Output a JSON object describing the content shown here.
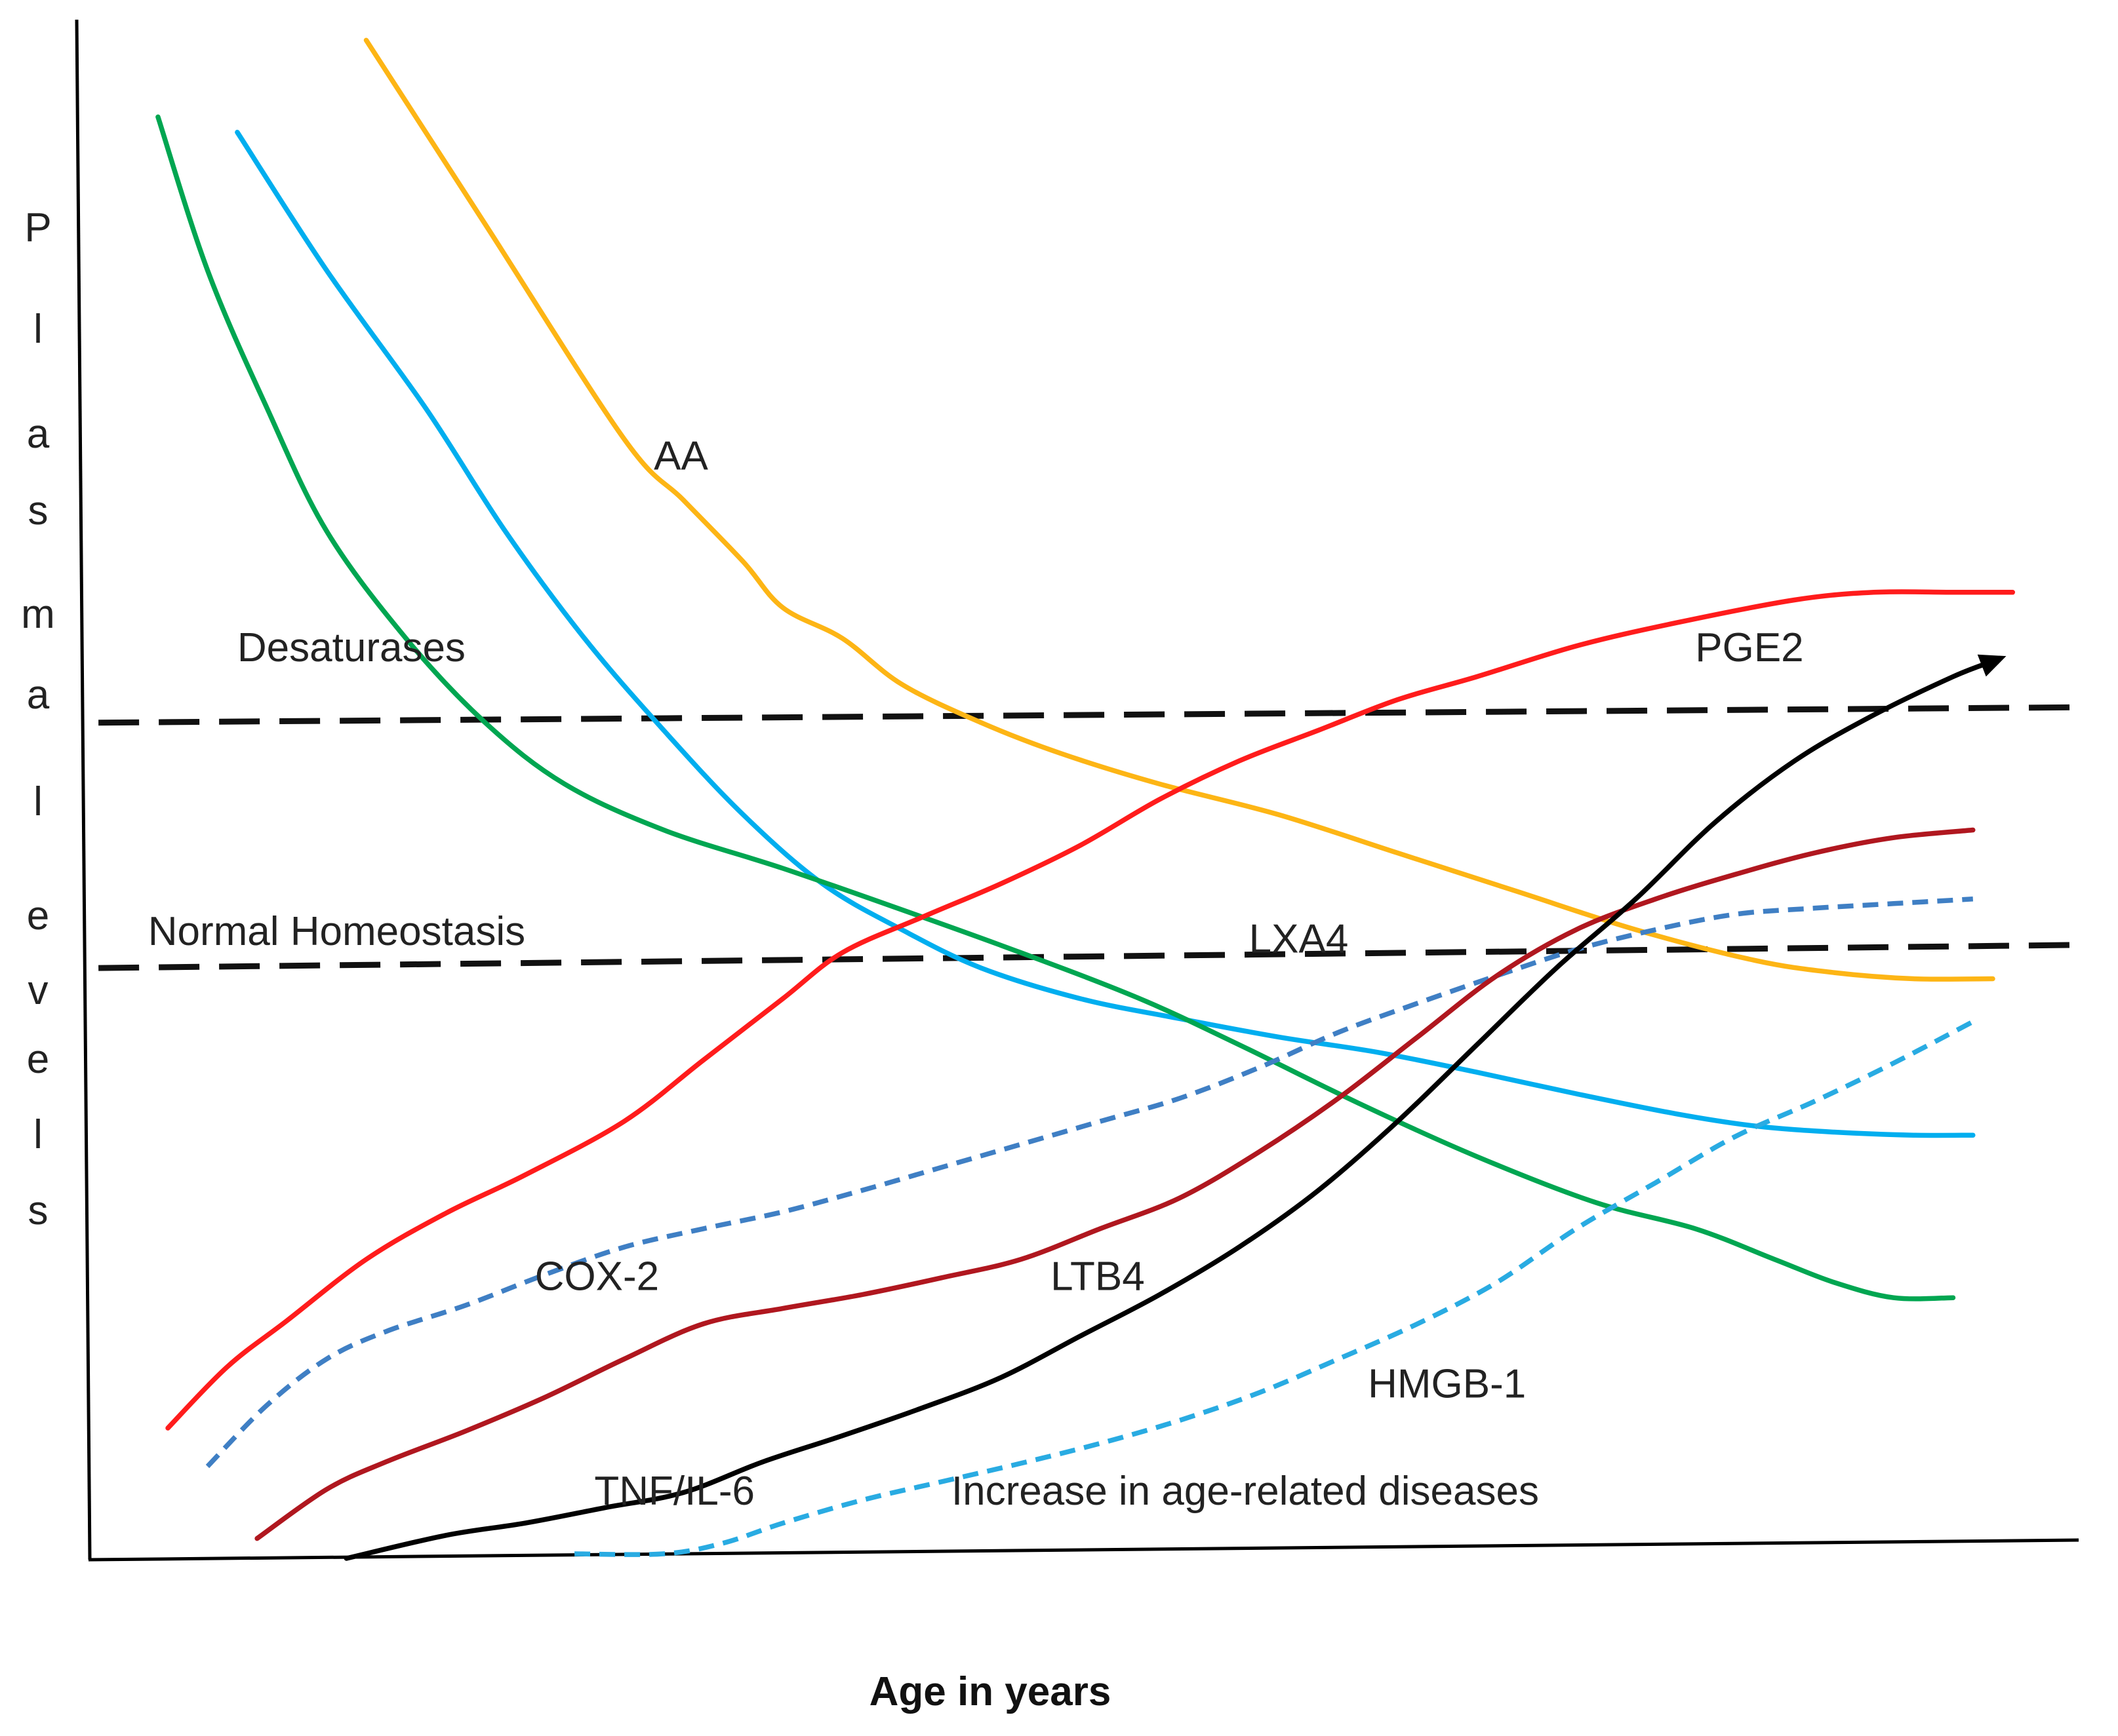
{
  "chart_data": {
    "type": "line",
    "title": "",
    "xlabel": "Age in years",
    "ylabel": "Plasma levels",
    "ylabel_letters": [
      "P",
      "l",
      "a",
      "s",
      "m",
      "a",
      "l",
      "e",
      "v",
      "e",
      "l",
      "s"
    ],
    "xlim": [
      0,
      100
    ],
    "ylim": [
      0,
      100
    ],
    "grid": false,
    "legend": "none",
    "colors": {
      "AA": "#FDB515",
      "Desaturases": "#00AEEF",
      "LXA4": "#00A651",
      "PGE2": "#FF1C1C",
      "COX-2": "#3F7FC4",
      "LTB4": "#B0171F",
      "TNF/IL-6": "#000000",
      "HMGB-1": "#29ABE2",
      "reference": "#111111"
    },
    "series": [
      {
        "name": "AA",
        "style": "solid",
        "x": [
          14,
          20,
          27,
          30,
          33,
          35,
          38,
          41,
          45,
          49,
          54,
          60,
          66,
          72,
          78,
          84,
          88,
          92,
          96
        ],
        "y": [
          99,
          87,
          73,
          69,
          65,
          62,
          60,
          57,
          54.5,
          52.5,
          50.5,
          48.5,
          46,
          43.5,
          41,
          39,
          38.2,
          37.8,
          37.8
        ]
      },
      {
        "name": "Desaturases",
        "style": "solid",
        "x": [
          7.5,
          12,
          17,
          21,
          25,
          29,
          33,
          37,
          41,
          45,
          50,
          55,
          60,
          65,
          70,
          75,
          80,
          84,
          88,
          92,
          95
        ],
        "y": [
          93,
          84,
          75,
          67,
          60,
          54,
          48.5,
          44,
          41,
          38.5,
          36.5,
          35.2,
          34,
          33,
          31.7,
          30.3,
          29,
          28.2,
          27.8,
          27.6,
          27.6
        ]
      },
      {
        "name": "LXA4",
        "style": "solid",
        "x": [
          3.5,
          6,
          9,
          12,
          16,
          20,
          24,
          29,
          35,
          41,
          47,
          53,
          58,
          64,
          70,
          76,
          81,
          85,
          88,
          91,
          94
        ],
        "y": [
          94,
          84,
          75,
          67,
          60,
          54.5,
          50.5,
          47.5,
          45,
          42.3,
          39.5,
          36.5,
          33.5,
          29.7,
          26.2,
          23.2,
          21.5,
          19.5,
          18,
          17,
          17
        ]
      },
      {
        "name": "PGE2",
        "style": "solid",
        "x": [
          4,
          7,
          10,
          14,
          18,
          22,
          27,
          31,
          35,
          38,
          42,
          46,
          50,
          54,
          58,
          62,
          66,
          70,
          75,
          80,
          86,
          90,
          94,
          97
        ],
        "y": [
          8.5,
          12.5,
          15.5,
          19.5,
          22.5,
          25,
          28.5,
          32.5,
          36.5,
          39.5,
          41.8,
          44,
          46.5,
          49.5,
          52,
          54,
          56,
          57.5,
          59.5,
          61,
          62.5,
          63,
          63,
          63
        ]
      },
      {
        "name": "COX-2",
        "style": "dashed",
        "x": [
          6,
          9,
          12,
          15,
          19,
          23,
          27,
          31,
          35,
          39,
          43,
          47,
          51,
          55,
          59,
          63,
          67,
          71,
          75,
          79,
          83,
          87,
          91,
          95
        ],
        "y": [
          6,
          10,
          13,
          14.8,
          16.5,
          18.5,
          20.3,
          21.5,
          22.6,
          24,
          25.5,
          27,
          28.5,
          30,
          32,
          34.3,
          36.2,
          38,
          39.7,
          41,
          42,
          42.4,
          42.7,
          43
        ]
      },
      {
        "name": "LTB4",
        "style": "solid",
        "x": [
          8.5,
          12,
          15,
          19,
          23,
          27,
          31,
          35,
          39,
          43,
          47,
          51,
          55,
          59,
          63,
          67,
          71,
          75,
          79,
          83,
          87,
          91,
          95
        ],
        "y": [
          1.3,
          4.5,
          6.3,
          8.3,
          10.5,
          13,
          15.3,
          16.3,
          17.2,
          18.3,
          19.5,
          21.5,
          23.5,
          26.5,
          30,
          34,
          38,
          41,
          43,
          44.6,
          46,
          47,
          47.5
        ]
      },
      {
        "name": "TNF/IL-6",
        "style": "solid",
        "x": [
          13,
          18,
          22,
          26,
          30,
          34,
          38,
          42,
          46,
          50,
          54,
          58,
          62,
          66,
          70,
          74,
          78,
          82,
          86,
          90,
          94,
          96
        ],
        "y": [
          0,
          1.5,
          2.3,
          3.3,
          4.3,
          6.3,
          8,
          9.8,
          11.8,
          14.5,
          17.2,
          20.3,
          24,
          28.5,
          33.5,
          38.5,
          43,
          48,
          52,
          55,
          57.5,
          58.5
        ]
      },
      {
        "name": "HMGB-1",
        "style": "dashed",
        "x": [
          24.5,
          29,
          32,
          35,
          39,
          43,
          47,
          51,
          55,
          59,
          63,
          67,
          71,
          75,
          79,
          83,
          87,
          91,
          95
        ],
        "y": [
          0.3,
          0.3,
          1,
          2.3,
          3.8,
          5,
          6.2,
          7.5,
          9,
          10.8,
          13,
          15.3,
          18,
          21.5,
          24.5,
          27.5,
          29.8,
          32.3,
          35
        ]
      },
      {
        "name": "Normal homeostasis upper bound",
        "style": "reference-dashed",
        "x": [
          0.5,
          100
        ],
        "y": [
          54.5,
          55.5
        ]
      },
      {
        "name": "Normal homeostasis lower bound",
        "style": "reference-dashed",
        "x": [
          0.5,
          100
        ],
        "y": [
          38.5,
          40
        ]
      }
    ],
    "curve_labels": [
      {
        "series": "AA",
        "text": "AA",
        "x": 28.5,
        "y": 71
      },
      {
        "series": "Desaturases",
        "text": "Desaturases",
        "x": 7.5,
        "y": 58.5
      },
      {
        "series": "LXA4",
        "text": "LXA4",
        "x": 58.5,
        "y": 39.5
      },
      {
        "series": "PGE2",
        "text": "PGE2",
        "x": 81,
        "y": 58.5
      },
      {
        "series": "COX-2",
        "text": "COX-2",
        "x": 22.5,
        "y": 17.5
      },
      {
        "series": "LTB4",
        "text": "LTB4",
        "x": 48.5,
        "y": 17.5
      },
      {
        "series": "HMGB-1",
        "text": "HMGB-1",
        "x": 64.5,
        "y": 10.5
      },
      {
        "series": "TNF/IL-6",
        "text": "TNF/IL-6",
        "x": 25.5,
        "y": 3.5
      }
    ],
    "annotations": [
      {
        "text": "Normal Homeostasis",
        "x": 3,
        "y": 40
      },
      {
        "text": "Increase in age-related diseases",
        "x": 43.5,
        "y": 3.5
      }
    ]
  }
}
